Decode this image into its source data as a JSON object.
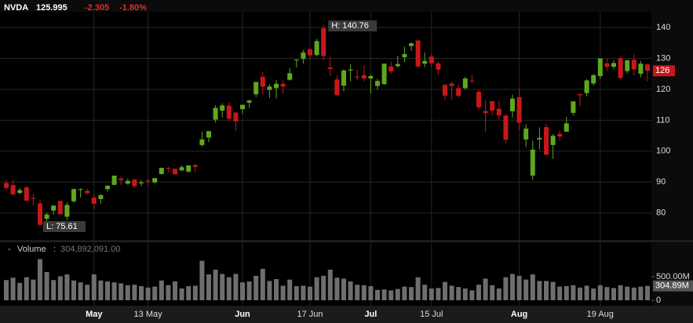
{
  "header": {
    "symbol": "NVDA",
    "price": "125.995",
    "change": "-2.305",
    "change_pct": "-1.80%"
  },
  "chart_data": [
    {
      "type": "candlestick",
      "categories": [
        null,
        null,
        null,
        null,
        null,
        null,
        null,
        null,
        null,
        null,
        null,
        null,
        null,
        "May",
        null,
        null,
        null,
        null,
        null,
        null,
        null,
        "13 May",
        null,
        null,
        null,
        null,
        null,
        null,
        null,
        null,
        null,
        null,
        null,
        null,
        null,
        "Jun",
        null,
        null,
        null,
        null,
        null,
        null,
        null,
        null,
        null,
        "17 Jun",
        null,
        null,
        null,
        null,
        null,
        null,
        null,
        null,
        "Jul",
        null,
        null,
        null,
        null,
        null,
        null,
        null,
        null,
        "15 Jul",
        null,
        null,
        null,
        null,
        null,
        null,
        null,
        null,
        null,
        null,
        null,
        null,
        "Aug",
        null,
        null,
        null,
        null,
        null,
        null,
        null,
        null,
        null,
        null,
        null,
        "19 Aug",
        null,
        null,
        null,
        null,
        null,
        null,
        null
      ],
      "open": [
        89.7,
        89.0,
        86.5,
        88.3,
        84.9,
        83.1,
        78.1,
        80.8,
        83.9,
        78.8,
        83.8,
        87.6,
        87.2,
        85.0,
        84.5,
        87.7,
        89.1,
        91.1,
        89.5,
        90.8,
        89.6,
        90.5,
        89.9,
        92.6,
        94.5,
        94.3,
        93.8,
        93.4,
        95.5,
        102.0,
        104.4,
        110.2,
        113.1,
        114.7,
        112.5,
        113.6,
        115.7,
        118.4,
        124.1,
        119.8,
        120.4,
        121.8,
        123.1,
        129.4,
        129.9,
        133.0,
        131.1,
        139.8,
        127.1,
        123.2,
        121.2,
        126.1,
        124.1,
        124.6,
        123.5,
        121.1,
        121.7,
        127.4,
        127.5,
        130.4,
        134.0,
        135.8,
        128.3,
        130.6,
        128.4,
        121.4,
        121.9,
        120.4,
        120.4,
        122.8,
        119.2,
        113.0,
        116.2,
        113.7,
        111.5,
        112.9,
        117.5,
        103.8,
        92.1,
        103.8,
        107.8,
        102.0,
        105.6,
        106.3,
        112.4,
        118.5,
        118.8,
        121.9,
        124.3,
        128.4,
        127.3,
        130.0,
        125.9,
        129.6,
        125.05,
        128.1
      ],
      "high": [
        90.7,
        90.6,
        88.1,
        88.8,
        86.1,
        84.3,
        80.1,
        82.5,
        84.0,
        83.4,
        88.0,
        88.0,
        87.8,
        86.0,
        86.0,
        89.0,
        92.1,
        91.8,
        91.2,
        91.2,
        90.7,
        91.1,
        91.3,
        94.7,
        95.0,
        94.3,
        95.4,
        95.3,
        96.0,
        106.3,
        106.5,
        114.9,
        115.5,
        115.8,
        112.7,
        115.0,
        116.6,
        122.4,
        125.6,
        121.7,
        123.1,
        122.9,
        126.9,
        129.8,
        132.8,
        133.7,
        136.3,
        140.76,
        130.6,
        124.5,
        126.5,
        128.1,
        126.4,
        127.7,
        124.8,
        123.4,
        128.3,
        128.9,
        130.8,
        133.8,
        135.1,
        136.2,
        131.9,
        131.4,
        129.0,
        121.9,
        122.4,
        121.6,
        124.1,
        124.7,
        119.9,
        116.6,
        116.2,
        116.3,
        112.0,
        118.3,
        120.2,
        108.7,
        103.4,
        107.7,
        108.8,
        105.5,
        106.6,
        111.1,
        116.2,
        118.6,
        123.2,
        125.0,
        130.0,
        129.9,
        129.4,
        130.75,
        129.6,
        131.3,
        129.2,
        128.3
      ],
      "low": [
        87.5,
        85.9,
        86.0,
        83.9,
        82.4,
        75.61,
        76.4,
        79.5,
        79.7,
        77.7,
        83.3,
        85.0,
        86.0,
        81.2,
        83.0,
        86.9,
        89.0,
        89.1,
        89.1,
        88.1,
        88.6,
        89.0,
        89.5,
        92.5,
        93.1,
        92.4,
        93.5,
        93.1,
        93.2,
        101.5,
        103.0,
        109.2,
        110.9,
        109.7,
        106.5,
        112.0,
        114.0,
        117.5,
        118.3,
        117.2,
        117.0,
        118.7,
        122.8,
        127.1,
        128.3,
        129.6,
        130.7,
        129.5,
        124.3,
        118.0,
        119.3,
        122.6,
        122.9,
        122.6,
        118.8,
        119.9,
        121.4,
        125.0,
        127.0,
        128.7,
        132.4,
        127.1,
        127.2,
        127.2,
        124.6,
        116.7,
        116.7,
        117.4,
        119.9,
        122.1,
        113.4,
        106.3,
        111.6,
        110.3,
        102.5,
        110.9,
        106.8,
        101.4,
        90.7,
        100.6,
        98.7,
        97.5,
        103.4,
        106.3,
        111.6,
        114.7,
        117.7,
        121.2,
        123.4,
        125.9,
        126.5,
        123.1,
        125.2,
        124.4,
        123.9,
        122.6
      ],
      "close": [
        88.1,
        86.0,
        87.4,
        84.0,
        84.6,
        76.2,
        79.5,
        82.4,
        79.6,
        82.6,
        87.7,
        87.7,
        86.4,
        83.0,
        85.8,
        88.8,
        92.1,
        90.6,
        90.4,
        88.7,
        89.9,
        90.4,
        91.3,
        94.6,
        94.3,
        92.5,
        94.8,
        95.4,
        94.9,
        103.8,
        106.5,
        114.0,
        114.8,
        110.5,
        109.6,
        115.0,
        116.4,
        122.4,
        120.9,
        120.9,
        121.8,
        120.9,
        125.2,
        129.6,
        131.9,
        131.0,
        135.6,
        130.8,
        126.6,
        118.1,
        126.1,
        126.4,
        124.0,
        123.5,
        124.3,
        122.7,
        128.3,
        125.8,
        128.2,
        131.4,
        134.9,
        127.4,
        129.2,
        128.4,
        126.4,
        118.0,
        121.1,
        117.9,
        123.5,
        122.6,
        114.2,
        112.3,
        113.1,
        111.6,
        103.7,
        117.0,
        109.2,
        107.3,
        100.5,
        104.3,
        98.9,
        104.97,
        104.75,
        109.0,
        116.1,
        118.1,
        122.9,
        124.6,
        130.0,
        127.3,
        128.5,
        123.7,
        129.4,
        126.5,
        128.3,
        126.0
      ],
      "up_color": "#5fa81e",
      "down_color": "#c8171b",
      "ylim": [
        71.3,
        145.1
      ],
      "yticks": [
        80,
        90,
        100,
        110,
        120,
        130,
        140
      ],
      "grid": true,
      "annotations": {
        "high": "H: 140.76",
        "low": "L: 75.61",
        "last": "126"
      }
    },
    {
      "type": "bar",
      "title": "Volume",
      "current": "304,892,091.00",
      "current_tag": "304.89M",
      "values": [
        430,
        480,
        370,
        490,
        440,
        875,
        600,
        430,
        510,
        550,
        420,
        380,
        330,
        550,
        420,
        400,
        380,
        360,
        320,
        330,
        300,
        270,
        290,
        420,
        320,
        400,
        250,
        300,
        310,
        840,
        550,
        650,
        560,
        490,
        560,
        380,
        400,
        520,
        670,
        410,
        450,
        310,
        440,
        300,
        310,
        290,
        490,
        520,
        650,
        480,
        460,
        400,
        330,
        320,
        300,
        220,
        230,
        210,
        240,
        290,
        280,
        490,
        330,
        250,
        260,
        390,
        310,
        280,
        250,
        210,
        330,
        460,
        320,
        250,
        490,
        560,
        520,
        440,
        550,
        410,
        410,
        390,
        290,
        300,
        320,
        270,
        310,
        250,
        320,
        280,
        260,
        320,
        290,
        270,
        290,
        304.89
      ],
      "color": "#6e6e6e",
      "ylim": [
        0,
        917
      ],
      "yticks": [
        {
          "value": 500,
          "label": "500.00M"
        },
        0
      ]
    }
  ]
}
